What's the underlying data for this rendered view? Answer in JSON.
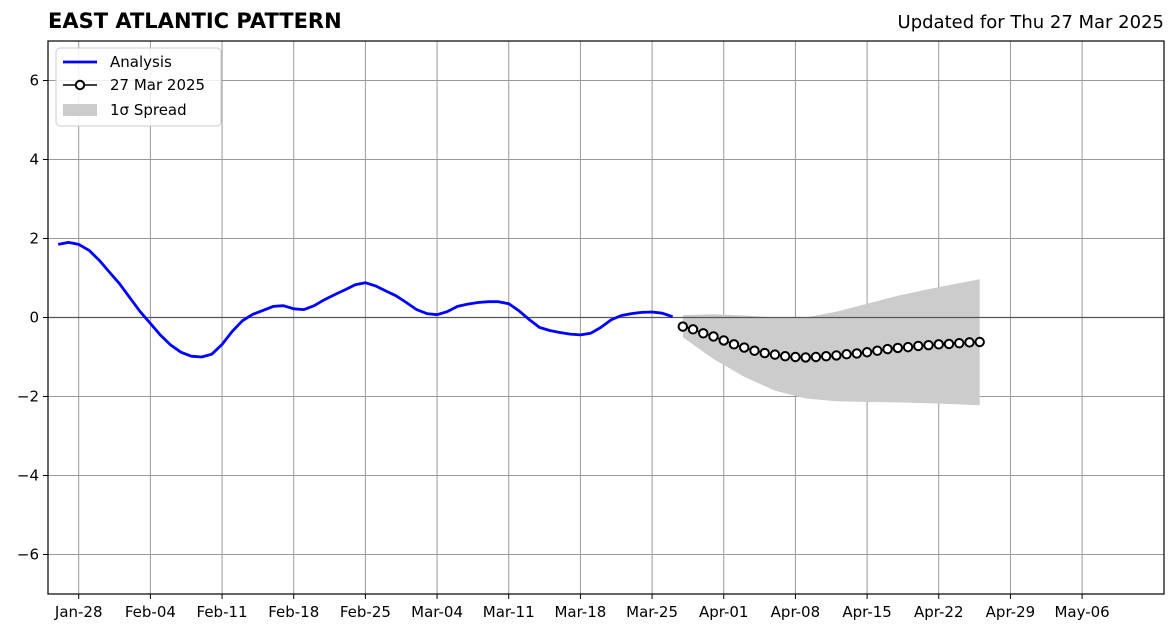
{
  "header": {
    "title": "EAST ATLANTIC PATTERN",
    "subtitle": "Updated for Thu 27 Mar 2025"
  },
  "colors": {
    "analysis": "#0000ff",
    "forecast_line": "#000000",
    "forecast_marker_fill": "#ffffff",
    "spread": "#cccccc",
    "grid": "#999999",
    "zero_line": "#555555"
  },
  "chart_data": {
    "type": "line",
    "title": "EAST ATLANTIC PATTERN",
    "xlabel": "",
    "ylabel": "",
    "x_axis": "date",
    "xlim": [
      "2025-01-25",
      "2025-05-14"
    ],
    "ylim": [
      -7,
      7
    ],
    "grid": true,
    "legend_position": "top-left",
    "x_ticks": [
      {
        "date": "2025-01-28",
        "label": "Jan-28"
      },
      {
        "date": "2025-02-04",
        "label": "Feb-04"
      },
      {
        "date": "2025-02-11",
        "label": "Feb-11"
      },
      {
        "date": "2025-02-18",
        "label": "Feb-18"
      },
      {
        "date": "2025-02-25",
        "label": "Feb-25"
      },
      {
        "date": "2025-03-04",
        "label": "Mar-04"
      },
      {
        "date": "2025-03-11",
        "label": "Mar-11"
      },
      {
        "date": "2025-03-18",
        "label": "Mar-18"
      },
      {
        "date": "2025-03-25",
        "label": "Mar-25"
      },
      {
        "date": "2025-04-01",
        "label": "Apr-01"
      },
      {
        "date": "2025-04-08",
        "label": "Apr-08"
      },
      {
        "date": "2025-04-15",
        "label": "Apr-15"
      },
      {
        "date": "2025-04-22",
        "label": "Apr-22"
      },
      {
        "date": "2025-04-29",
        "label": "Apr-29"
      },
      {
        "date": "2025-05-06",
        "label": "May-06"
      }
    ],
    "y_ticks": [
      {
        "value": 6,
        "label": "6"
      },
      {
        "value": 4,
        "label": "4"
      },
      {
        "value": 2,
        "label": "2"
      },
      {
        "value": 0,
        "label": "0"
      },
      {
        "value": -2,
        "label": "−2"
      },
      {
        "value": -4,
        "label": "−4"
      },
      {
        "value": -6,
        "label": "−6"
      }
    ],
    "legend": [
      {
        "label": "Analysis",
        "kind": "line"
      },
      {
        "label": "27 Mar 2025",
        "kind": "marker-line"
      },
      {
        "label": "1σ Spread",
        "kind": "patch"
      }
    ],
    "analysis": {
      "dates": [
        "2025-01-26",
        "2025-01-27",
        "2025-01-28",
        "2025-01-29",
        "2025-01-30",
        "2025-01-31",
        "2025-02-01",
        "2025-02-02",
        "2025-02-03",
        "2025-02-04",
        "2025-02-05",
        "2025-02-06",
        "2025-02-07",
        "2025-02-08",
        "2025-02-09",
        "2025-02-10",
        "2025-02-11",
        "2025-02-12",
        "2025-02-13",
        "2025-02-14",
        "2025-02-15",
        "2025-02-16",
        "2025-02-17",
        "2025-02-18",
        "2025-02-19",
        "2025-02-20",
        "2025-02-21",
        "2025-02-22",
        "2025-02-23",
        "2025-02-24",
        "2025-02-25",
        "2025-02-26",
        "2025-02-27",
        "2025-02-28",
        "2025-03-01",
        "2025-03-02",
        "2025-03-03",
        "2025-03-04",
        "2025-03-05",
        "2025-03-06",
        "2025-03-07",
        "2025-03-08",
        "2025-03-09",
        "2025-03-10",
        "2025-03-11",
        "2025-03-12",
        "2025-03-13",
        "2025-03-14",
        "2025-03-15",
        "2025-03-16",
        "2025-03-17",
        "2025-03-18",
        "2025-03-19",
        "2025-03-20",
        "2025-03-21",
        "2025-03-22",
        "2025-03-23",
        "2025-03-24",
        "2025-03-25",
        "2025-03-26",
        "2025-03-27"
      ],
      "values": [
        1.85,
        1.9,
        1.85,
        1.7,
        1.45,
        1.15,
        0.85,
        0.5,
        0.15,
        -0.15,
        -0.45,
        -0.7,
        -0.88,
        -0.98,
        -1.0,
        -0.93,
        -0.68,
        -0.35,
        -0.08,
        0.08,
        0.18,
        0.28,
        0.3,
        0.22,
        0.2,
        0.3,
        0.45,
        0.58,
        0.7,
        0.83,
        0.88,
        0.8,
        0.67,
        0.55,
        0.38,
        0.2,
        0.1,
        0.07,
        0.15,
        0.28,
        0.34,
        0.38,
        0.4,
        0.4,
        0.35,
        0.17,
        -0.05,
        -0.25,
        -0.33,
        -0.38,
        -0.42,
        -0.44,
        -0.4,
        -0.25,
        -0.06,
        0.05,
        0.1,
        0.13,
        0.14,
        0.11,
        0.02
      ]
    },
    "forecast": {
      "name": "27 Mar 2025",
      "dates": [
        "2025-03-28",
        "2025-03-29",
        "2025-03-30",
        "2025-03-31",
        "2025-04-01",
        "2025-04-02",
        "2025-04-03",
        "2025-04-04",
        "2025-04-05",
        "2025-04-06",
        "2025-04-07",
        "2025-04-08",
        "2025-04-09",
        "2025-04-10",
        "2025-04-11",
        "2025-04-12",
        "2025-04-13",
        "2025-04-14",
        "2025-04-15",
        "2025-04-16",
        "2025-04-17",
        "2025-04-18",
        "2025-04-19",
        "2025-04-20",
        "2025-04-21",
        "2025-04-22",
        "2025-04-23",
        "2025-04-24",
        "2025-04-25",
        "2025-04-26"
      ],
      "values": [
        -0.23,
        -0.3,
        -0.4,
        -0.48,
        -0.58,
        -0.68,
        -0.76,
        -0.84,
        -0.9,
        -0.94,
        -0.98,
        -1.0,
        -1.01,
        -1.0,
        -0.98,
        -0.96,
        -0.93,
        -0.91,
        -0.88,
        -0.84,
        -0.8,
        -0.77,
        -0.75,
        -0.72,
        -0.7,
        -0.68,
        -0.67,
        -0.65,
        -0.63,
        -0.62
      ]
    },
    "spread": {
      "dates": [
        "2025-03-28",
        "2025-03-31",
        "2025-04-03",
        "2025-04-06",
        "2025-04-09",
        "2025-04-12",
        "2025-04-15",
        "2025-04-18",
        "2025-04-21",
        "2025-04-24",
        "2025-04-26"
      ],
      "upper": [
        0.06,
        0.08,
        0.05,
        0.0,
        0.0,
        0.15,
        0.35,
        0.55,
        0.72,
        0.87,
        0.97
      ],
      "lower": [
        -0.5,
        -1.05,
        -1.5,
        -1.85,
        -2.05,
        -2.12,
        -2.14,
        -2.15,
        -2.17,
        -2.2,
        -2.22
      ]
    }
  }
}
